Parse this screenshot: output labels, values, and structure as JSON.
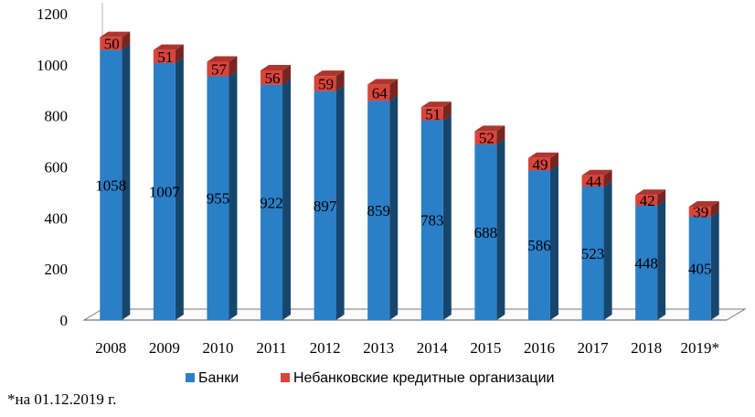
{
  "chart_data": {
    "type": "bar",
    "stacked": true,
    "categories": [
      "2008",
      "2009",
      "2010",
      "2011",
      "2012",
      "2013",
      "2014",
      "2015",
      "2016",
      "2017",
      "2018",
      "2019*"
    ],
    "series": [
      {
        "name": "Банки",
        "values": [
          1058,
          1007,
          955,
          922,
          897,
          859,
          783,
          688,
          586,
          523,
          448,
          405
        ],
        "color": "#2a7fc7"
      },
      {
        "name": "Небанковские кредитные организации",
        "values": [
          50,
          51,
          57,
          56,
          59,
          64,
          51,
          52,
          49,
          44,
          42,
          39
        ],
        "color": "#d9443b"
      }
    ],
    "ylim": [
      0,
      1200
    ],
    "yticks": [
      0,
      200,
      400,
      600,
      800,
      1000,
      1200
    ],
    "grid": false,
    "legend_position": "bottom",
    "footnote": "*на 01.12.2019 г."
  }
}
